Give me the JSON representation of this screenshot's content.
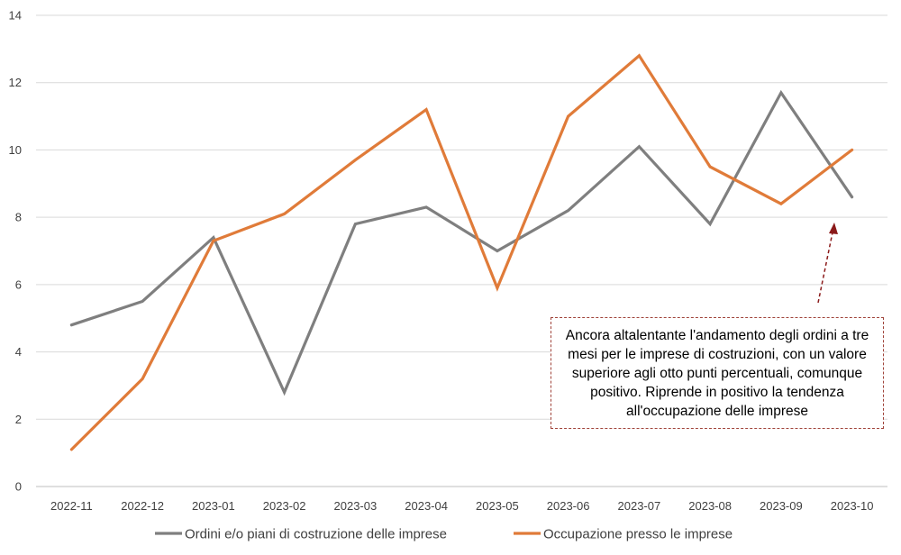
{
  "chart_data": {
    "type": "line",
    "categories": [
      "2022-11",
      "2022-12",
      "2023-01",
      "2023-02",
      "2023-03",
      "2023-04",
      "2023-05",
      "2023-06",
      "2023-07",
      "2023-08",
      "2023-09",
      "2023-10"
    ],
    "series": [
      {
        "name": "Ordini e/o piani di costruzione delle imprese",
        "color": "#7f7f7f",
        "values": [
          4.8,
          5.5,
          7.4,
          2.8,
          7.8,
          8.3,
          7.0,
          8.2,
          10.1,
          7.8,
          11.7,
          8.6
        ]
      },
      {
        "name": "Occupazione presso le imprese",
        "color": "#e07b39",
        "values": [
          1.1,
          3.2,
          7.3,
          8.1,
          9.7,
          11.2,
          5.9,
          11.0,
          12.8,
          9.5,
          8.4,
          10.0
        ]
      }
    ],
    "ylim": [
      0,
      14
    ],
    "yticks": [
      "0",
      "2",
      "4",
      "6",
      "8",
      "10",
      "12",
      "14"
    ],
    "grid": true,
    "legend_position": "bottom",
    "annotation": {
      "text": "Ancora altalentante l'andamento degli ordini a tre mesi per le imprese di costruzioni, con un valore superiore agli otto punti percentuali, comunque positivo. Riprende in positivo la tendenza all'occupazione delle imprese",
      "arrow_color": "#8b1a1a",
      "border_color": "#a0433a"
    }
  }
}
